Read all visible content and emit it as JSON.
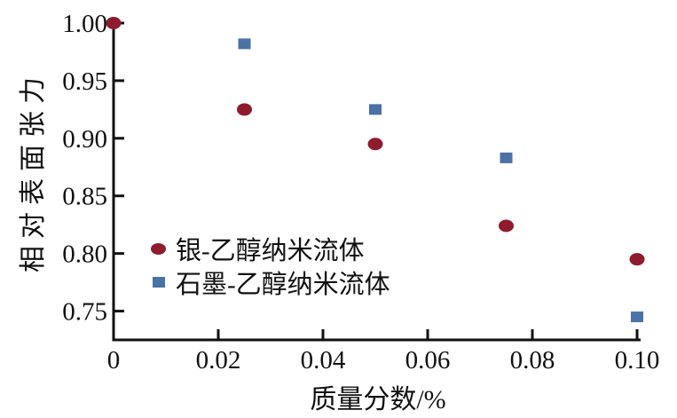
{
  "chart_data": {
    "type": "scatter",
    "title": "",
    "xlabel": "质量分数/%",
    "ylabel": "相对表面张力",
    "xlim": [
      0,
      0.1
    ],
    "ylim": [
      0.725,
      1.0
    ],
    "xticks": [
      0,
      0.02,
      0.04,
      0.06,
      0.08,
      0.1
    ],
    "xtick_labels": [
      "0",
      "0.02",
      "0.04",
      "0.06",
      "0.08",
      "0.10"
    ],
    "yticks": [
      1.0,
      0.95,
      0.9,
      0.85,
      0.8,
      0.75
    ],
    "ytick_labels": [
      "1.00",
      "0.95",
      "0.90",
      "0.85",
      "0.80",
      "0.75"
    ],
    "grid": false,
    "legend_position": "inside-left-middle",
    "axis_color": "#111111",
    "series": [
      {
        "name": "银-乙醇纳米流体",
        "marker": "circle",
        "color": "#8e1c2c",
        "x": [
          0,
          0.025,
          0.05,
          0.075,
          0.1
        ],
        "values": [
          1.0,
          0.925,
          0.895,
          0.824,
          0.795
        ]
      },
      {
        "name": "石墨-乙醇纳米流体",
        "marker": "square",
        "color": "#4a72a4",
        "x": [
          0.025,
          0.05,
          0.075,
          0.1
        ],
        "values": [
          0.982,
          0.925,
          0.883,
          0.745
        ]
      }
    ]
  }
}
